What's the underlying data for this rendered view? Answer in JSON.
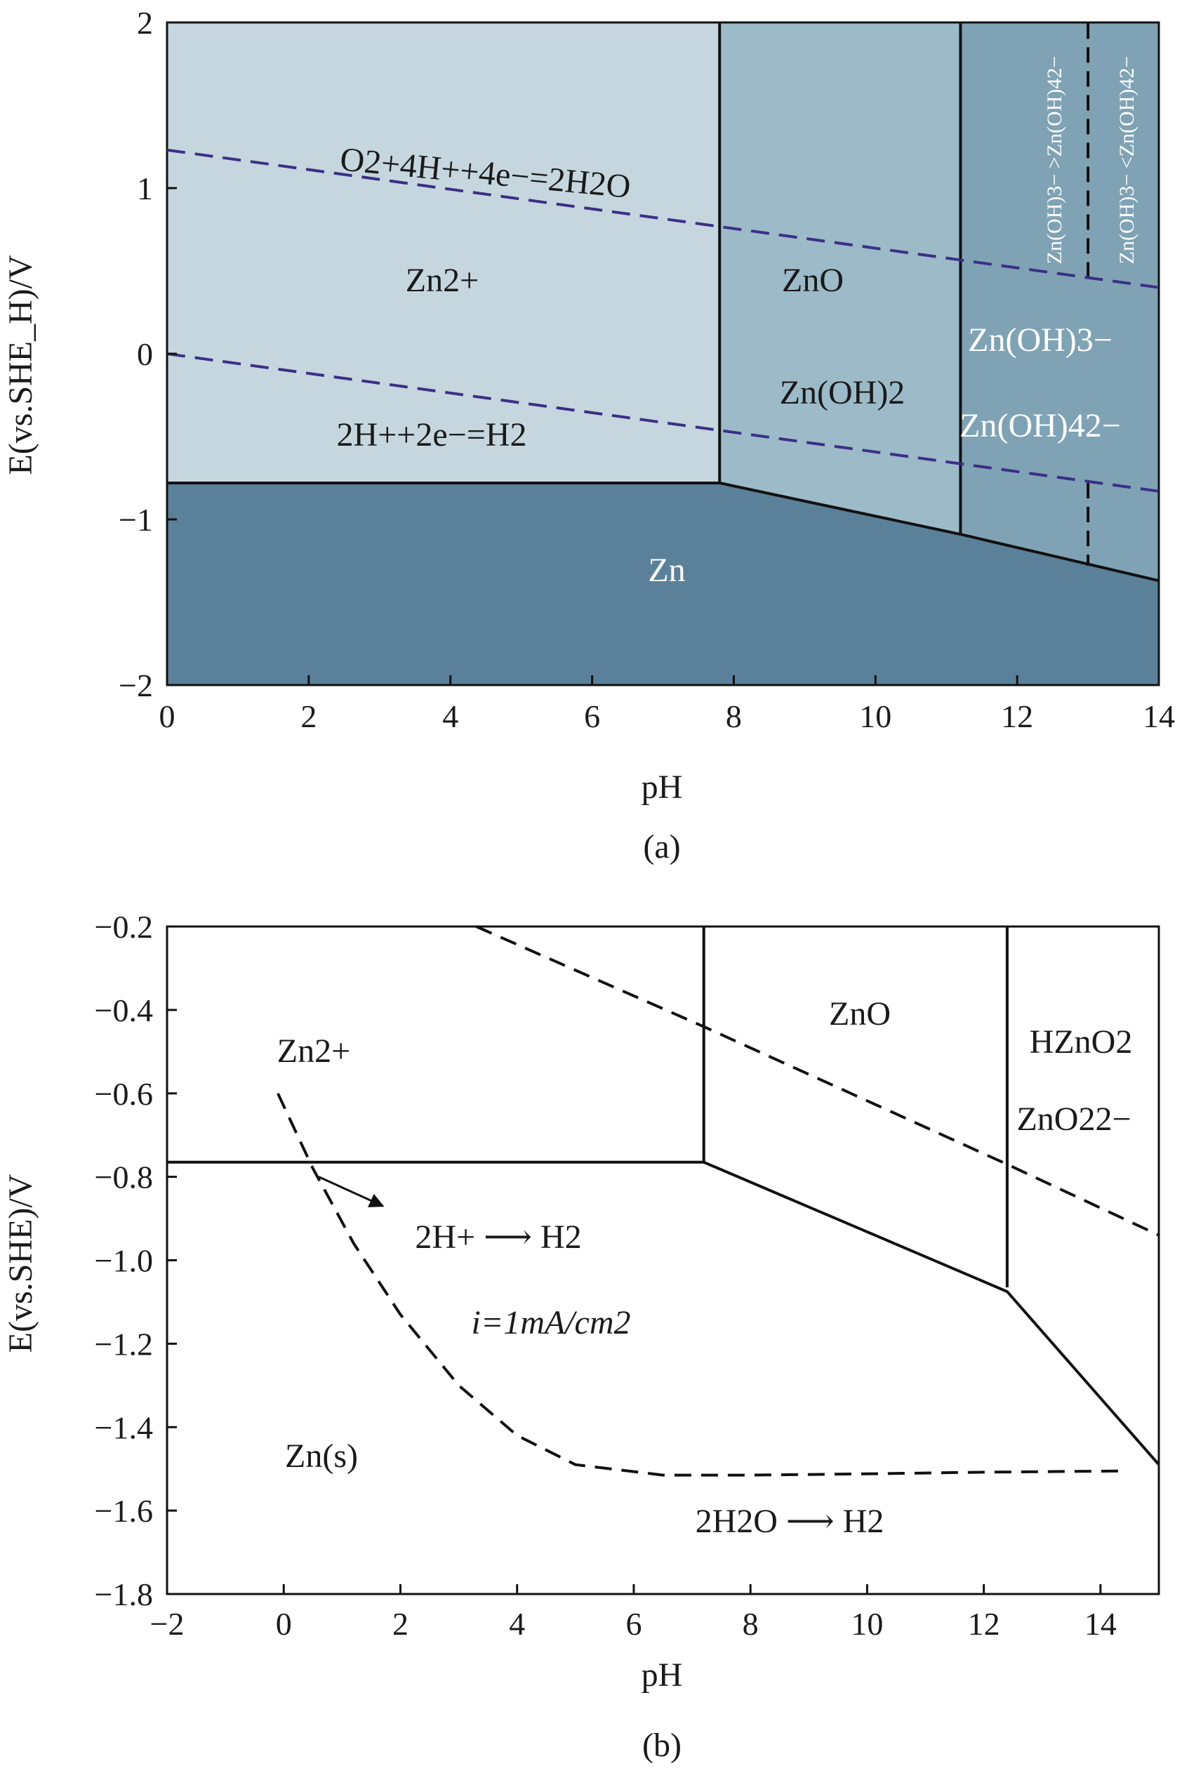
{
  "chart_data": [
    {
      "id": "a",
      "type": "area",
      "caption": "(a)",
      "xlabel": "pH",
      "ylabel": "E(vs.SHE_H)/V",
      "xlim": [
        0,
        14
      ],
      "ylim": [
        -2,
        2
      ],
      "x_ticks": [
        0,
        2,
        4,
        6,
        8,
        10,
        12,
        14
      ],
      "y_ticks": [
        -2,
        -1,
        0,
        1,
        2
      ],
      "x_tick_labels": [
        "0",
        "2",
        "4",
        "6",
        "8",
        "10",
        "12",
        "14"
      ],
      "y_tick_labels": [
        "−2",
        "−1",
        "0",
        "1",
        "2"
      ],
      "grid": false,
      "colors": {
        "zn": "#5a8199",
        "zn2plus": "#c5d6de",
        "zno": "#9cbac8",
        "zincate": "#7fa3b5",
        "water_lines": "#3b2f86"
      },
      "regions": [
        {
          "name": "Zn",
          "polygon": [
            [
              0,
              -2
            ],
            [
              14,
              -2
            ],
            [
              14,
              -1.37
            ],
            [
              11.2,
              -1.09
            ],
            [
              7.8,
              -0.78
            ],
            [
              0,
              -0.78
            ]
          ],
          "fill": "#5a8199"
        },
        {
          "name": "Zn2+",
          "polygon": [
            [
              0,
              -0.78
            ],
            [
              7.8,
              -0.78
            ],
            [
              7.8,
              2
            ],
            [
              0,
              2
            ]
          ],
          "fill": "#c5d6de"
        },
        {
          "name": "ZnO",
          "polygon": [
            [
              7.8,
              -0.78
            ],
            [
              11.2,
              -1.09
            ],
            [
              11.2,
              2
            ],
            [
              7.8,
              2
            ]
          ],
          "fill": "#9cbac8"
        },
        {
          "name": "zincate",
          "polygon": [
            [
              11.2,
              -1.09
            ],
            [
              14,
              -1.37
            ],
            [
              14,
              2
            ],
            [
              11.2,
              2
            ]
          ],
          "fill": "#7fa3b5"
        }
      ],
      "boundaries": [
        {
          "style": "solid",
          "points": [
            [
              0,
              -0.78
            ],
            [
              7.8,
              -0.78
            ]
          ]
        },
        {
          "style": "solid",
          "points": [
            [
              7.8,
              -0.78
            ],
            [
              11.2,
              -1.09
            ],
            [
              14,
              -1.37
            ]
          ]
        },
        {
          "style": "solid",
          "points": [
            [
              7.8,
              -0.78
            ],
            [
              7.8,
              2
            ]
          ]
        },
        {
          "style": "solid",
          "points": [
            [
              11.2,
              -1.09
            ],
            [
              11.2,
              2
            ]
          ]
        },
        {
          "style": "dashed",
          "points": [
            [
              13,
              0.46
            ],
            [
              13,
              2
            ]
          ]
        },
        {
          "style": "dashed",
          "points": [
            [
              13,
              -0.78
            ],
            [
              13,
              -1.28
            ]
          ]
        }
      ],
      "water_lines": [
        {
          "style": "dashed",
          "points": [
            [
              0,
              1.23
            ],
            [
              14,
              0.4
            ]
          ]
        },
        {
          "style": "dashed",
          "points": [
            [
              0,
              0
            ],
            [
              14,
              -0.83
            ]
          ]
        }
      ],
      "labels": {
        "o2_reaction": "O2+4H++4e−=2H2O",
        "h2_reaction": "2H++2e−=H2",
        "zn2plus": "Zn2+",
        "zno": "ZnO",
        "zn_oh_2": "Zn(OH)2",
        "zn_oh_3": "Zn(OH)3−",
        "zn_oh_4": "Zn(OH)42−",
        "zn": "Zn",
        "vertical_left": "Zn(OH)3− >Zn(OH)42−",
        "vertical_right": "Zn(OH)3− <Zn(OH)42−"
      }
    },
    {
      "id": "b",
      "type": "line",
      "caption": "(b)",
      "xlabel": "pH",
      "ylabel": "E(vs.SHE)/V",
      "xlim": [
        -2,
        15
      ],
      "ylim": [
        -1.8,
        -0.2
      ],
      "x_ticks": [
        -2,
        0,
        2,
        4,
        6,
        8,
        10,
        12,
        14
      ],
      "y_ticks": [
        -0.2,
        -0.4,
        -0.6,
        -0.8,
        -1.0,
        -1.2,
        -1.4,
        -1.6,
        -1.8
      ],
      "x_tick_labels": [
        "−2",
        "0",
        "2",
        "4",
        "6",
        "8",
        "10",
        "12",
        "14"
      ],
      "y_tick_labels": [
        "−0.2",
        "−0.4",
        "−0.6",
        "−0.8",
        "−1.0",
        "−1.2",
        "−1.4",
        "−1.6",
        "−1.8"
      ],
      "grid": false,
      "boundaries": [
        {
          "style": "solid",
          "points": [
            [
              -2,
              -0.765
            ],
            [
              7.2,
              -0.765
            ]
          ]
        },
        {
          "style": "solid",
          "points": [
            [
              7.2,
              -0.2
            ],
            [
              7.2,
              -0.765
            ]
          ]
        },
        {
          "style": "solid",
          "points": [
            [
              7.2,
              -0.765
            ],
            [
              12.4,
              -1.075
            ],
            [
              15,
              -1.49
            ]
          ]
        },
        {
          "style": "solid",
          "points": [
            [
              12.4,
              -0.2
            ],
            [
              12.4,
              -1.065
            ]
          ]
        }
      ],
      "dashed_lines": [
        {
          "name": "2H+ → H2 line",
          "style": "dashed",
          "points": [
            [
              3.3,
              -0.2
            ],
            [
              7.2,
              -0.44
            ],
            [
              12.4,
              -0.77
            ],
            [
              15,
              -0.94
            ]
          ]
        },
        {
          "name": "i=1mA/cm2 curve",
          "style": "dashed",
          "points": [
            [
              -0.1,
              -0.6
            ],
            [
              0.5,
              -0.78
            ],
            [
              1.2,
              -0.96
            ],
            [
              2,
              -1.13
            ],
            [
              3,
              -1.3
            ],
            [
              4,
              -1.42
            ],
            [
              5,
              -1.49
            ],
            [
              6.5,
              -1.515
            ],
            [
              8,
              -1.515
            ],
            [
              10,
              -1.512
            ],
            [
              12,
              -1.508
            ],
            [
              14.4,
              -1.505
            ]
          ]
        }
      ],
      "arrow": {
        "from": [
          0.6,
          -0.8
        ],
        "to": [
          1.7,
          -0.87
        ]
      },
      "labels": {
        "zno": "ZnO",
        "zn2plus": "Zn2+",
        "hzno2": "HZnO2",
        "zno2": "ZnO22−",
        "h_reaction": "2H+ ⟶ H2",
        "current": "i=1mA/cm2",
        "zn_s": "Zn(s)",
        "water_reaction": "2H2O ⟶ H2"
      }
    }
  ]
}
